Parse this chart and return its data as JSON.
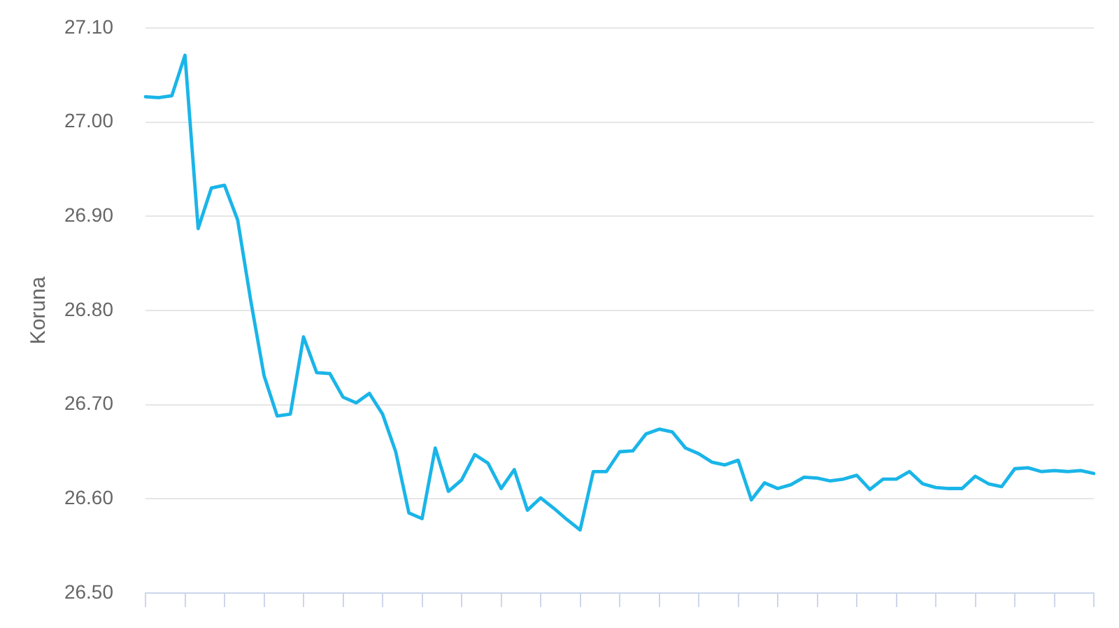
{
  "chart_data": {
    "type": "line",
    "ylabel": "Koruna",
    "categories": [
      null,
      null,
      null,
      null,
      null,
      null,
      null,
      null,
      null,
      null,
      null,
      null,
      null,
      null,
      null,
      null,
      null,
      null,
      null,
      null,
      null,
      null,
      null,
      null,
      null,
      null,
      null,
      null,
      null,
      null,
      null,
      null,
      null,
      null,
      null,
      null,
      null,
      null,
      null,
      null,
      null,
      null,
      null,
      null,
      null,
      null,
      null,
      null,
      null,
      null,
      null,
      null,
      null,
      null,
      null,
      null,
      null,
      null,
      null,
      null,
      null,
      null,
      null,
      null,
      null,
      null,
      null,
      null,
      null,
      null,
      null,
      null,
      null
    ],
    "series": [
      {
        "color": "#1ab5e8",
        "values": [
          27.027,
          27.026,
          27.028,
          27.071,
          26.887,
          26.93,
          26.933,
          26.896,
          26.81,
          26.731,
          26.688,
          26.69,
          26.772,
          26.734,
          26.733,
          26.708,
          26.702,
          26.712,
          26.69,
          26.65,
          26.585,
          26.579,
          26.654,
          26.608,
          26.62,
          26.647,
          26.638,
          26.611,
          26.631,
          26.588,
          26.601,
          26.59,
          26.578,
          26.567,
          26.629,
          26.629,
          26.65,
          26.651,
          26.669,
          26.674,
          26.671,
          26.654,
          26.648,
          26.639,
          26.636,
          26.641,
          26.599,
          26.617,
          26.611,
          26.615,
          26.623,
          26.622,
          26.619,
          26.621,
          26.625,
          26.61,
          26.621,
          26.621,
          26.629,
          26.616,
          26.612,
          26.611,
          26.611,
          26.624,
          26.616,
          26.613,
          26.632,
          26.633,
          26.629,
          26.63,
          26.629,
          26.63,
          26.627
        ]
      }
    ],
    "ylim": [
      26.5,
      27.1
    ],
    "yticks": [
      {
        "value": 26.5,
        "label": "26.50"
      },
      {
        "value": 26.6,
        "label": "26.60"
      },
      {
        "value": 26.7,
        "label": "26.70"
      },
      {
        "value": 26.8,
        "label": "26.80"
      },
      {
        "value": 26.9,
        "label": "26.90"
      },
      {
        "value": 27.0,
        "label": "27.00"
      },
      {
        "value": 27.1,
        "label": "27.10"
      }
    ],
    "grid": "y",
    "legend": false,
    "marker": "none",
    "line_style": "solid",
    "tick_labels": "y"
  }
}
